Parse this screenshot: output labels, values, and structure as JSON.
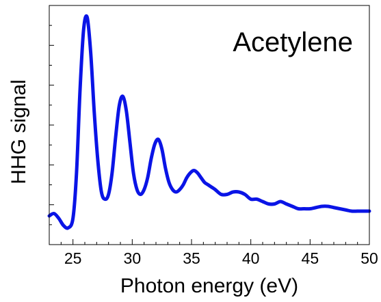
{
  "chart_data": {
    "type": "line",
    "title": "",
    "annotation": "Acetylene",
    "xlabel": "Photon energy (eV)",
    "ylabel": "HHG signal",
    "xlim": [
      23,
      50
    ],
    "ylim": [
      0,
      1
    ],
    "x_ticks": [
      25,
      30,
      35,
      40,
      45,
      50
    ],
    "y_tick_labels_shown": false,
    "grid": false,
    "legend": "none",
    "line_color": "#0a14e6",
    "series": [
      {
        "x": [
          23.0,
          23.4,
          23.8,
          24.2,
          24.6,
          25.0,
          25.3,
          25.6,
          25.9,
          26.2,
          26.5,
          26.8,
          27.1,
          27.4,
          27.7,
          28.0,
          28.3,
          28.6,
          28.9,
          29.2,
          29.5,
          29.8,
          30.1,
          30.4,
          30.7,
          31.0,
          31.3,
          31.6,
          31.9,
          32.2,
          32.5,
          32.8,
          33.1,
          33.4,
          33.7,
          34.0,
          34.3,
          34.6,
          34.9,
          35.2,
          35.5,
          35.8,
          36.1,
          36.4,
          36.7,
          37.0,
          37.5,
          38.0,
          38.5,
          39.0,
          39.5,
          40.0,
          40.5,
          41.0,
          41.5,
          42.0,
          42.5,
          43.0,
          43.5,
          44.0,
          44.5,
          45.0,
          45.5,
          46.0,
          46.5,
          47.0,
          47.5,
          48.0,
          48.5,
          49.0,
          49.5,
          50.0
        ],
        "y": [
          0.12,
          0.13,
          0.11,
          0.08,
          0.07,
          0.11,
          0.3,
          0.65,
          0.9,
          0.95,
          0.8,
          0.55,
          0.35,
          0.22,
          0.19,
          0.21,
          0.3,
          0.45,
          0.58,
          0.62,
          0.56,
          0.43,
          0.3,
          0.23,
          0.21,
          0.23,
          0.28,
          0.36,
          0.42,
          0.44,
          0.4,
          0.32,
          0.26,
          0.23,
          0.22,
          0.23,
          0.25,
          0.28,
          0.3,
          0.31,
          0.3,
          0.28,
          0.26,
          0.25,
          0.24,
          0.23,
          0.21,
          0.21,
          0.22,
          0.22,
          0.21,
          0.19,
          0.19,
          0.18,
          0.17,
          0.17,
          0.18,
          0.17,
          0.16,
          0.15,
          0.15,
          0.15,
          0.155,
          0.16,
          0.16,
          0.155,
          0.15,
          0.145,
          0.14,
          0.14,
          0.14,
          0.14
        ]
      }
    ]
  }
}
